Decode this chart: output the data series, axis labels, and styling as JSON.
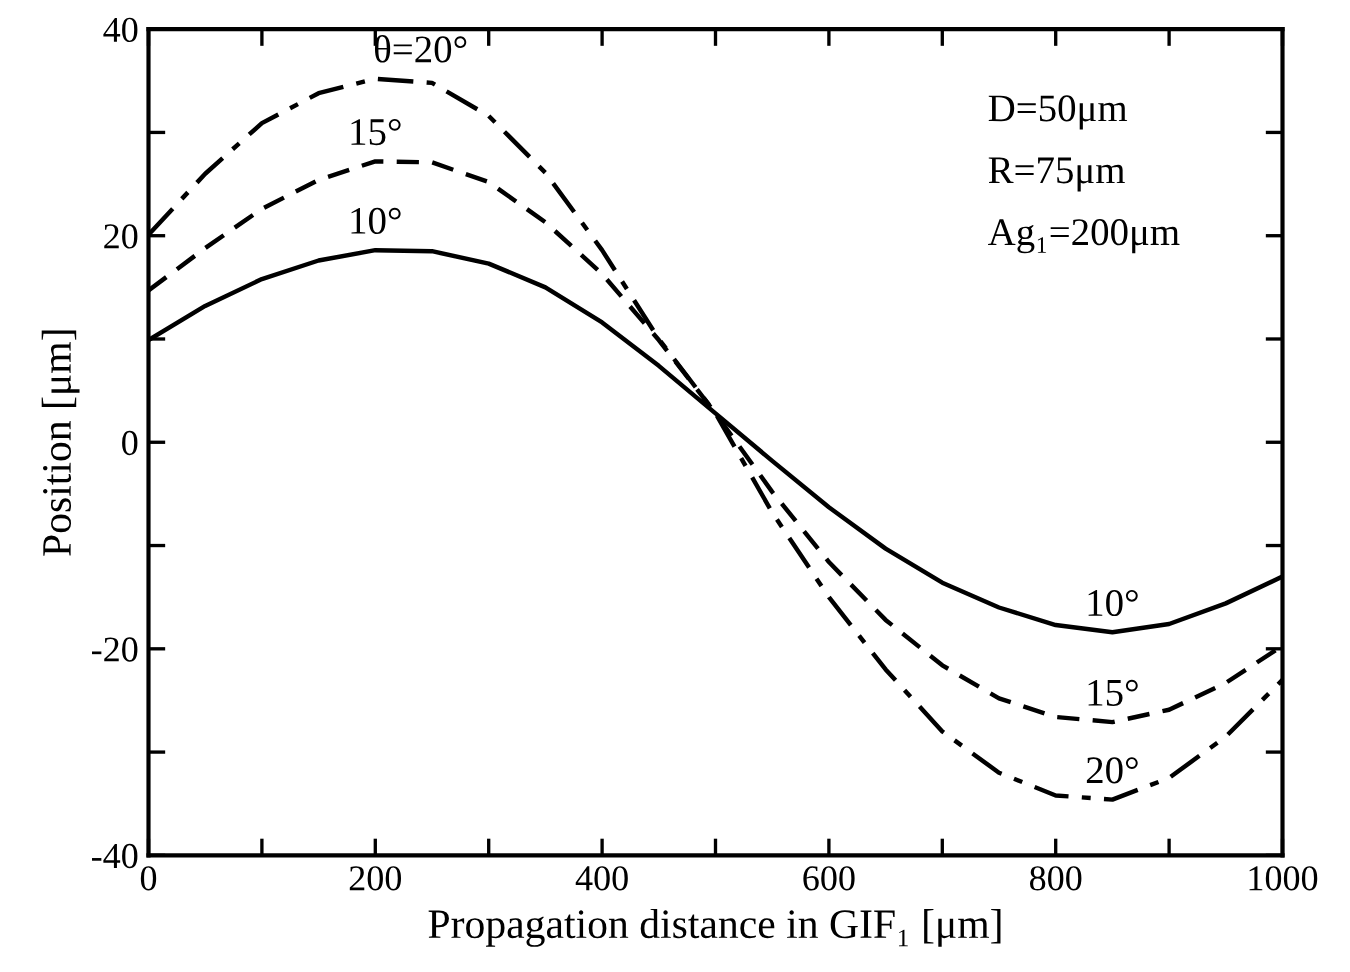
{
  "chart_data": {
    "type": "line",
    "xlabel": "Propagation distance in GIF₁ [μm]",
    "ylabel": "Position [μm]",
    "xlim": [
      0,
      1000
    ],
    "ylim": [
      -40,
      40
    ],
    "xticks": [
      0,
      {
        "value": 100,
        "label": null
      },
      200,
      {
        "value": 300,
        "label": null
      },
      400,
      {
        "value": 500,
        "label": null
      },
      600,
      {
        "value": 700,
        "label": null
      },
      800,
      {
        "value": 900,
        "label": null
      },
      1000
    ],
    "yticks": [
      -40,
      {
        "value": -30,
        "label": null
      },
      -20,
      {
        "value": -10,
        "label": null
      },
      0,
      {
        "value": 10,
        "label": null
      },
      20,
      {
        "value": 30,
        "label": null
      },
      40
    ],
    "grid": false,
    "marker": "none",
    "x": [
      0,
      50,
      100,
      150,
      200,
      250,
      300,
      350,
      400,
      450,
      500,
      550,
      600,
      650,
      700,
      750,
      800,
      850,
      900,
      950,
      1000
    ],
    "series": [
      {
        "color": "#000000",
        "line_style": "solid",
        "values": [
          9.9,
          13.2,
          15.8,
          17.6,
          18.6,
          18.5,
          17.3,
          15.0,
          11.6,
          7.4,
          2.8,
          -1.8,
          -6.3,
          -10.3,
          -13.6,
          -16.0,
          -17.7,
          -18.4,
          -17.6,
          -15.6,
          -13.0
        ]
      },
      {
        "color": "#000000",
        "line_style": "dashed",
        "values": [
          14.7,
          18.8,
          22.6,
          25.4,
          27.2,
          27.1,
          25.2,
          21.3,
          16.3,
          9.9,
          2.8,
          -4.8,
          -11.6,
          -17.2,
          -21.6,
          -24.8,
          -26.6,
          -27.1,
          -25.9,
          -23.3,
          -19.7
        ]
      },
      {
        "color": "#000000",
        "line_style": "dashdot",
        "values": [
          20.1,
          26.0,
          30.9,
          33.8,
          35.2,
          34.8,
          31.6,
          26.1,
          18.6,
          10.0,
          2.8,
          -6.8,
          -15.0,
          -22.0,
          -28.0,
          -32.0,
          -34.2,
          -34.6,
          -32.5,
          -28.5,
          -23.0
        ]
      }
    ],
    "annotations": [
      "10°",
      "15°",
      "θ=20°",
      "10°",
      "15°",
      "20°",
      "D=50μm",
      "R=75μm",
      "Ag₁=200μm"
    ]
  }
}
